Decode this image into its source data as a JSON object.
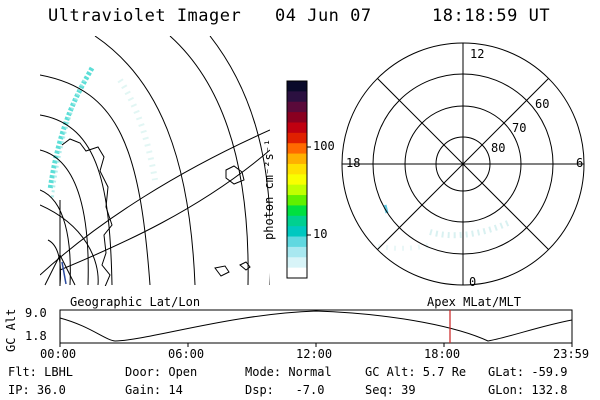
{
  "header": {
    "title": "Ultraviolet Imager",
    "date": "04 Jun 07",
    "time": "18:18:59 UT"
  },
  "colorbar": {
    "unit_label": "photon cm⁻²s⁻¹",
    "ticks": [
      "100",
      "10"
    ],
    "colors": [
      "#0a0a2a",
      "#2b1040",
      "#5a0a3a",
      "#8a0020",
      "#c00010",
      "#e02000",
      "#ff6a00",
      "#ffb000",
      "#ffe000",
      "#f8ff00",
      "#c0ff00",
      "#60f000",
      "#00e040",
      "#00d090",
      "#00c8c0",
      "#60d8e0",
      "#a8e8f0",
      "#d8f4f8",
      "#ffffff"
    ]
  },
  "polar_plot": {
    "mlt_labels": [
      "12",
      "18",
      "6",
      "0"
    ],
    "lat_labels": [
      "60",
      "70",
      "80"
    ]
  },
  "timeline": {
    "left_title": "Geographic Lat/Lon",
    "right_title": "Apex MLat/MLT",
    "axis_label": "GC Alt",
    "y_labels": [
      "9.0",
      "1.8"
    ],
    "x_labels": [
      "00:00",
      "06:00",
      "12:00",
      "18:00",
      "23:59"
    ],
    "marker_color": "#cc2222"
  },
  "footer": {
    "row1": {
      "flt": "Flt: LBHL",
      "door": "Door: Open",
      "mode": "Mode: Normal",
      "gcalt": "GC Alt: 5.7 Re",
      "glat": "GLat: -59.9"
    },
    "row2": {
      "ip": "IP: 36.0",
      "gain": "Gain: 14",
      "dsp": "Dsp:   -7.0",
      "seq": "Seq: 39",
      "glon": "GLon: 132.8"
    }
  }
}
